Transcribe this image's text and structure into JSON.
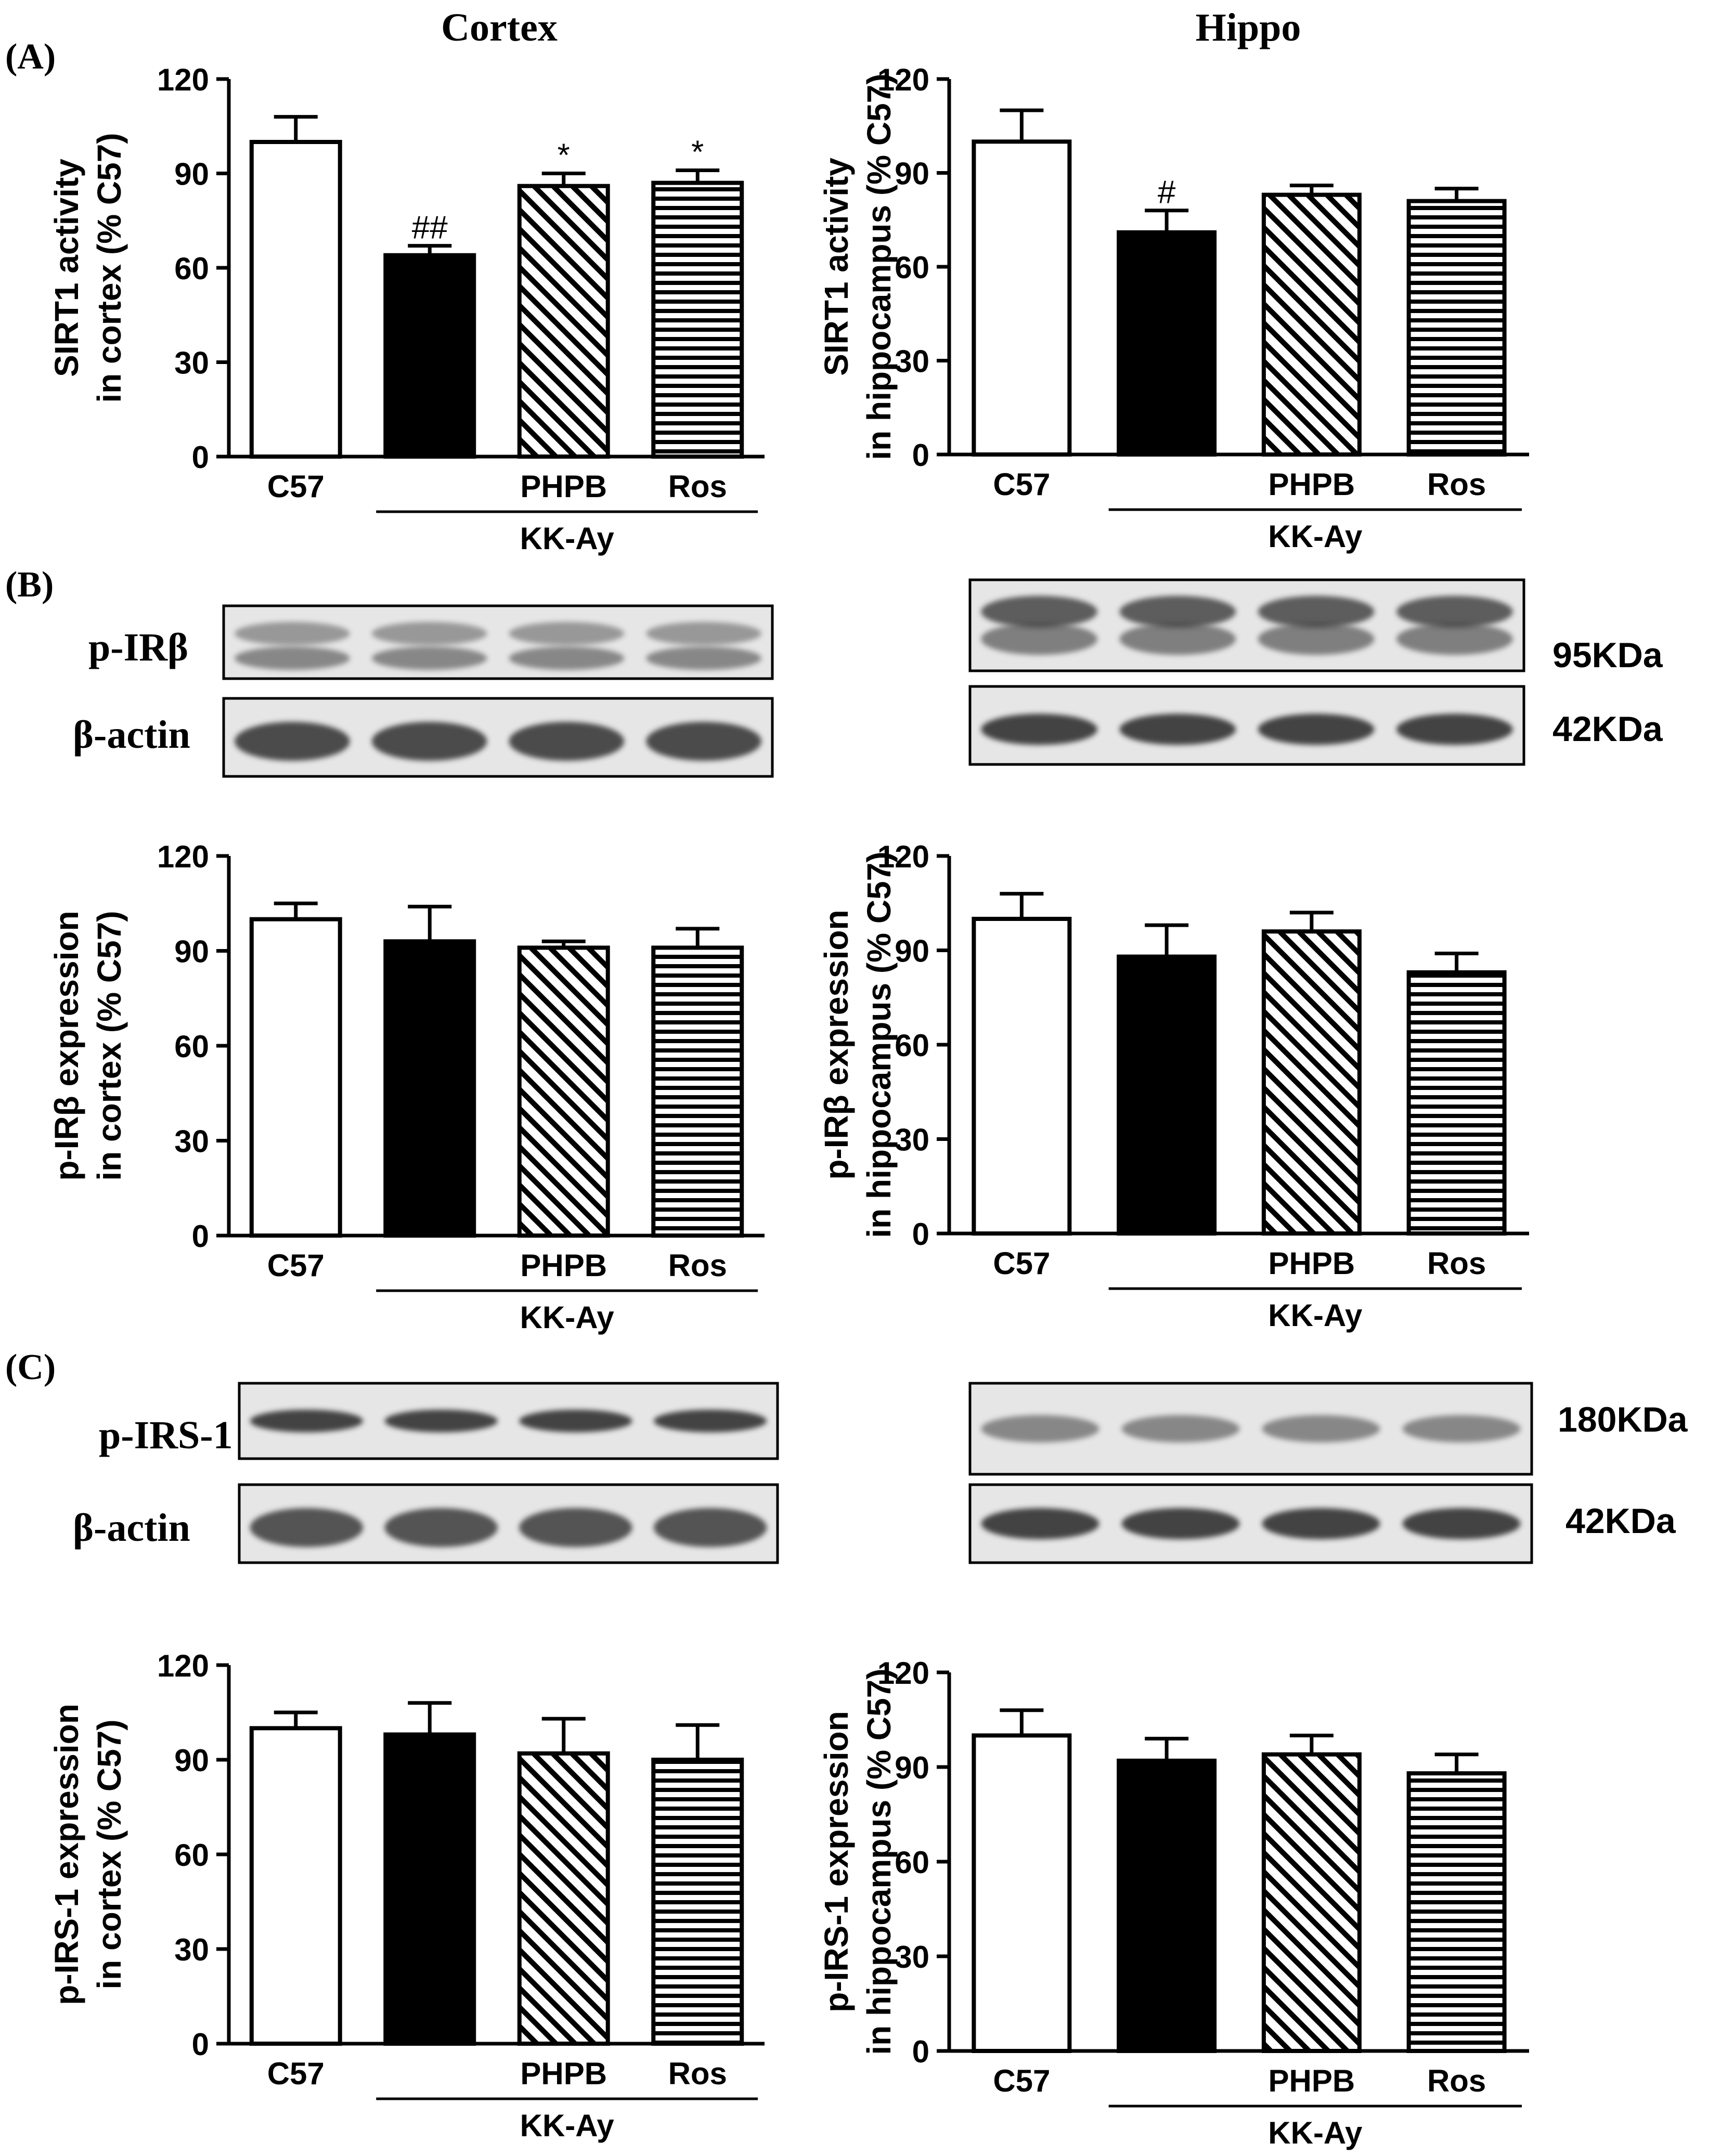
{
  "column_titles": [
    "Cortex",
    "Hippo"
  ],
  "panel_labels": [
    "(A)",
    "(B)",
    "(C)"
  ],
  "group_label": "KK-Ay",
  "blot_rows": [
    {
      "label": "p-IRβ",
      "kda": "95KDa"
    },
    {
      "label": "β-actin",
      "kda": "42KDa"
    },
    {
      "label": "p-IRS-1",
      "kda": "180KDa"
    },
    {
      "label": "β-actin",
      "kda": "42KDa"
    }
  ],
  "colors": {
    "ink": "#000000",
    "c57_fill": "#ffffff",
    "kkay_fill": "#000000",
    "blot_bg": "#e6e6e6",
    "band": "#3a3a3a"
  },
  "chart_data": [
    {
      "type": "bar",
      "panel": "(A)",
      "column": "Cortex",
      "categories": [
        "C57",
        "",
        "PHPB",
        "Ros"
      ],
      "values": [
        100,
        64,
        86,
        87
      ],
      "errors": [
        8,
        3,
        4,
        4
      ],
      "annotations": [
        "",
        "##",
        "*",
        "*"
      ],
      "fills": [
        "white",
        "black",
        "diagonal-hatch",
        "horizontal-hatch"
      ],
      "ylabel": [
        "SIRT1 activity",
        "in cortex (% C57)"
      ],
      "yticks": [
        0,
        30,
        60,
        90,
        120
      ],
      "ylim": [
        0,
        120
      ]
    },
    {
      "type": "bar",
      "panel": "(A)",
      "column": "Hippo",
      "categories": [
        "C57",
        "",
        "PHPB",
        "Ros"
      ],
      "values": [
        100,
        71,
        83,
        81
      ],
      "errors": [
        10,
        7,
        3,
        4
      ],
      "annotations": [
        "",
        "#",
        "",
        ""
      ],
      "fills": [
        "white",
        "black",
        "diagonal-hatch",
        "horizontal-hatch"
      ],
      "ylabel": [
        "SIRT1 activity",
        "in hippocampus (% C57)"
      ],
      "yticks": [
        0,
        30,
        60,
        90,
        120
      ],
      "ylim": [
        0,
        120
      ]
    },
    {
      "type": "bar",
      "panel": "(B)",
      "column": "Cortex",
      "categories": [
        "C57",
        "",
        "PHPB",
        "Ros"
      ],
      "values": [
        100,
        93,
        91,
        91
      ],
      "errors": [
        5,
        11,
        2,
        6
      ],
      "annotations": [
        "",
        "",
        "",
        ""
      ],
      "fills": [
        "white",
        "black",
        "diagonal-hatch",
        "horizontal-hatch"
      ],
      "ylabel": [
        "p-IRβ expression",
        "in cortex (% C57)"
      ],
      "yticks": [
        0,
        30,
        60,
        90,
        120
      ],
      "ylim": [
        0,
        120
      ]
    },
    {
      "type": "bar",
      "panel": "(B)",
      "column": "Hippo",
      "categories": [
        "C57",
        "",
        "PHPB",
        "Ros"
      ],
      "values": [
        100,
        88,
        96,
        83
      ],
      "errors": [
        8,
        10,
        6,
        6
      ],
      "annotations": [
        "",
        "",
        "",
        ""
      ],
      "fills": [
        "white",
        "black",
        "diagonal-hatch",
        "horizontal-hatch"
      ],
      "ylabel": [
        "p-IRβ expression",
        "in hippocampus (% C57)"
      ],
      "yticks": [
        0,
        30,
        60,
        90,
        120
      ],
      "ylim": [
        0,
        120
      ]
    },
    {
      "type": "bar",
      "panel": "(C)",
      "column": "Cortex",
      "categories": [
        "C57",
        "",
        "PHPB",
        "Ros"
      ],
      "values": [
        100,
        98,
        92,
        90
      ],
      "errors": [
        5,
        10,
        11,
        11
      ],
      "annotations": [
        "",
        "",
        "",
        ""
      ],
      "fills": [
        "white",
        "black",
        "diagonal-hatch",
        "horizontal-hatch"
      ],
      "ylabel": [
        "p-IRS-1 expression",
        "in cortex (% C57)"
      ],
      "yticks": [
        0,
        30,
        60,
        90,
        120
      ],
      "ylim": [
        0,
        120
      ]
    },
    {
      "type": "bar",
      "panel": "(C)",
      "column": "Hippo",
      "categories": [
        "C57",
        "",
        "PHPB",
        "Ros"
      ],
      "values": [
        100,
        92,
        94,
        88
      ],
      "errors": [
        8,
        7,
        6,
        6
      ],
      "annotations": [
        "",
        "",
        "",
        ""
      ],
      "fills": [
        "white",
        "black",
        "diagonal-hatch",
        "horizontal-hatch"
      ],
      "ylabel": [
        "p-IRS-1 expression",
        "in hippocampus (% C57)"
      ],
      "yticks": [
        0,
        30,
        60,
        90,
        120
      ],
      "ylim": [
        0,
        120
      ]
    }
  ]
}
